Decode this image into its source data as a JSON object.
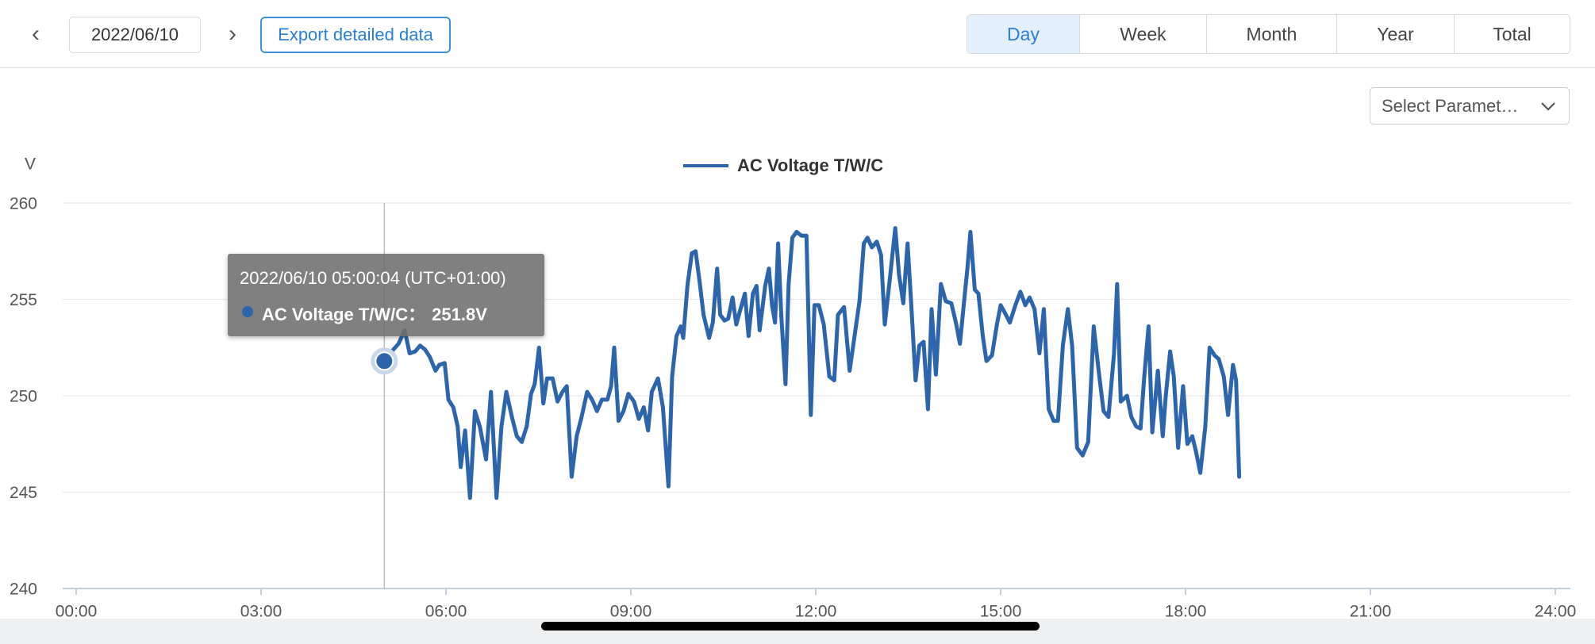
{
  "toolbar": {
    "date": "2022/06/10",
    "export": "Export detailed data",
    "periods": [
      "Day",
      "Week",
      "Month",
      "Year",
      "Total"
    ]
  },
  "select_placeholder": "Select Paramet…",
  "tooltip": {
    "time": "2022/06/10 05:00:04 (UTC+01:00)",
    "label": "AC Voltage T/W/C：",
    "value": "251.8V"
  },
  "chart_data": {
    "type": "line",
    "y_axis_label": "V",
    "grid": true,
    "legend": "top",
    "xlim": [
      0,
      24
    ],
    "xticks": [
      {
        "value": 0,
        "label": "00:00"
      },
      {
        "value": 3,
        "label": "03:00"
      },
      {
        "value": 6,
        "label": "06:00"
      },
      {
        "value": 9,
        "label": "09:00"
      },
      {
        "value": 12,
        "label": "12:00"
      },
      {
        "value": 15,
        "label": "15:00"
      },
      {
        "value": 18,
        "label": "18:00"
      },
      {
        "value": 21,
        "label": "21:00"
      },
      {
        "value": 24,
        "label": "24:00"
      }
    ],
    "ylim": [
      240,
      260
    ],
    "yticks": [
      240,
      245,
      250,
      255,
      260
    ],
    "x": [
      5.0,
      5.12,
      5.23,
      5.33,
      5.41,
      5.5,
      5.58,
      5.66,
      5.74,
      5.83,
      5.89,
      5.98,
      6.04,
      6.12,
      6.19,
      6.24,
      6.31,
      6.39,
      6.47,
      6.55,
      6.65,
      6.73,
      6.82,
      6.9,
      6.98,
      7.07,
      7.15,
      7.23,
      7.31,
      7.38,
      7.44,
      7.51,
      7.58,
      7.64,
      7.73,
      7.81,
      7.89,
      7.96,
      8.04,
      8.12,
      8.2,
      8.29,
      8.37,
      8.45,
      8.53,
      8.62,
      8.68,
      8.73,
      8.8,
      8.88,
      8.96,
      9.05,
      9.13,
      9.21,
      9.28,
      9.34,
      9.44,
      9.52,
      9.61,
      9.67,
      9.74,
      9.81,
      9.85,
      9.92,
      9.99,
      10.05,
      10.12,
      10.18,
      10.27,
      10.33,
      10.4,
      10.45,
      10.52,
      10.58,
      10.65,
      10.71,
      10.78,
      10.85,
      10.91,
      10.98,
      11.04,
      11.09,
      11.18,
      11.24,
      11.29,
      11.34,
      11.39,
      11.44,
      11.51,
      11.56,
      11.62,
      11.69,
      11.77,
      11.85,
      11.92,
      11.98,
      12.05,
      12.13,
      12.22,
      12.3,
      12.36,
      12.46,
      12.55,
      12.63,
      12.71,
      12.78,
      12.84,
      12.91,
      12.99,
      13.06,
      13.12,
      13.21,
      13.29,
      13.35,
      13.42,
      13.49,
      13.55,
      13.62,
      13.68,
      13.75,
      13.82,
      13.88,
      13.95,
      14.03,
      14.11,
      14.2,
      14.28,
      14.34,
      14.41,
      14.46,
      14.51,
      14.58,
      14.64,
      14.71,
      14.77,
      14.86,
      14.94,
      15.0,
      15.07,
      15.15,
      15.24,
      15.32,
      15.4,
      15.47,
      15.55,
      15.63,
      15.7,
      15.78,
      15.86,
      15.93,
      16.01,
      16.09,
      16.16,
      16.24,
      16.33,
      16.42,
      16.51,
      16.59,
      16.67,
      16.75,
      16.84,
      16.89,
      16.95,
      17.05,
      17.12,
      17.2,
      17.27,
      17.33,
      17.4,
      17.46,
      17.55,
      17.63,
      17.68,
      17.75,
      17.81,
      17.88,
      17.96,
      18.03,
      18.11,
      18.17,
      18.24,
      18.32,
      18.39,
      18.47,
      18.54,
      18.62,
      18.69,
      18.77,
      18.82,
      18.87
    ],
    "series": [
      {
        "name": "AC Voltage T/W/C",
        "color": "#2d65ad",
        "values": [
          251.8,
          252.3,
          252.7,
          253.4,
          252.2,
          252.3,
          252.6,
          252.4,
          252.0,
          251.3,
          251.6,
          251.7,
          249.8,
          249.4,
          248.4,
          246.3,
          248.2,
          244.7,
          249.2,
          248.4,
          246.7,
          250.2,
          244.7,
          248.4,
          250.2,
          248.9,
          247.9,
          247.6,
          248.4,
          250.1,
          250.6,
          252.5,
          249.6,
          250.9,
          250.9,
          249.7,
          250.2,
          250.5,
          245.8,
          247.9,
          248.9,
          250.2,
          249.8,
          249.2,
          249.8,
          249.8,
          250.5,
          252.5,
          248.7,
          249.2,
          250.1,
          249.7,
          248.8,
          249.4,
          248.2,
          250.2,
          250.9,
          249.4,
          245.3,
          251.0,
          253.1,
          253.6,
          253.0,
          255.8,
          257.4,
          257.5,
          255.8,
          254.2,
          253.0,
          253.8,
          256.6,
          254.2,
          253.9,
          254.0,
          255.1,
          253.7,
          254.5,
          255.3,
          253.1,
          255.3,
          255.7,
          253.4,
          255.7,
          256.6,
          254.7,
          253.8,
          257.9,
          254.2,
          250.6,
          255.8,
          258.2,
          258.5,
          258.3,
          258.3,
          249.0,
          254.7,
          254.7,
          253.7,
          251.0,
          250.8,
          254.2,
          254.6,
          251.3,
          253.1,
          254.9,
          257.9,
          258.2,
          257.7,
          258.0,
          257.3,
          253.7,
          256.3,
          258.7,
          256.3,
          254.8,
          257.9,
          254.7,
          250.8,
          252.6,
          252.8,
          249.3,
          254.5,
          251.1,
          255.8,
          254.9,
          254.8,
          253.7,
          252.7,
          255.0,
          256.6,
          258.5,
          255.5,
          255.3,
          253.1,
          251.8,
          252.1,
          253.7,
          254.7,
          254.3,
          253.8,
          254.7,
          255.4,
          254.7,
          255.1,
          254.5,
          252.2,
          254.5,
          249.3,
          248.7,
          248.7,
          252.6,
          254.5,
          252.6,
          247.3,
          246.9,
          247.6,
          253.6,
          251.3,
          249.2,
          248.9,
          252.2,
          255.8,
          249.7,
          250.0,
          248.9,
          248.4,
          248.3,
          251.0,
          253.6,
          248.1,
          251.3,
          247.9,
          250.0,
          252.3,
          251.0,
          247.3,
          250.5,
          247.5,
          247.9,
          247.1,
          246.0,
          248.4,
          252.5,
          252.1,
          251.9,
          251.0,
          249.0,
          251.6,
          250.8,
          245.8
        ]
      }
    ]
  }
}
